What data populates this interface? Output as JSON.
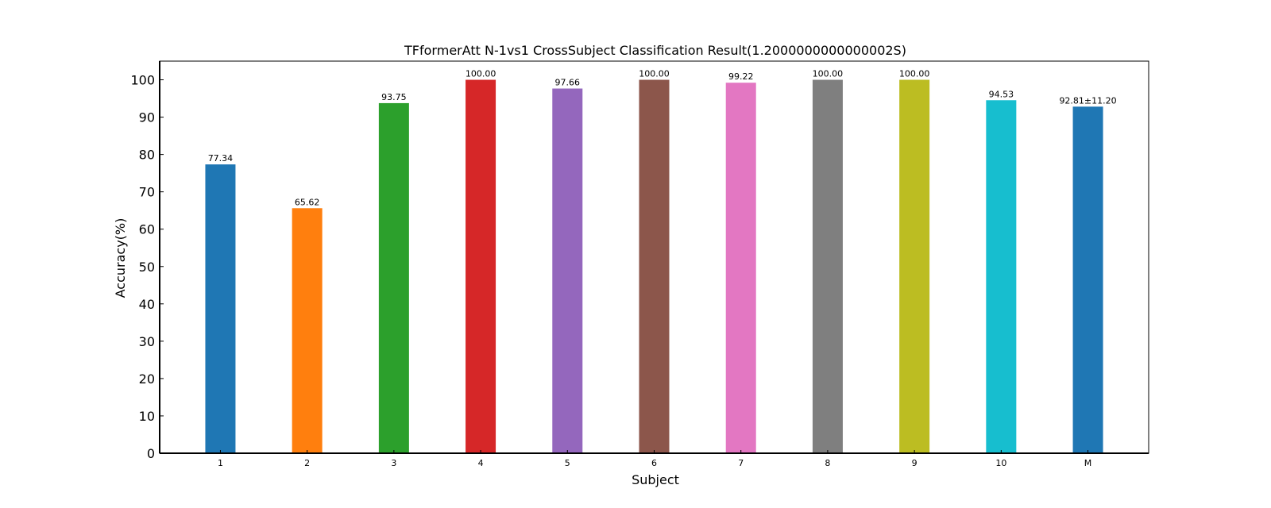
{
  "chart_data": {
    "type": "bar",
    "title": "TFformerAtt N-1vs1 CrossSubject Classification Result(1.2000000000000002S)",
    "xlabel": "Subject",
    "ylabel": "Accuracy(%)",
    "ylim": [
      0,
      105
    ],
    "yticks": [
      0,
      10,
      20,
      30,
      40,
      50,
      60,
      70,
      80,
      90,
      100
    ],
    "grid": false,
    "categories": [
      "1",
      "2",
      "3",
      "4",
      "5",
      "6",
      "7",
      "8",
      "9",
      "10",
      "M"
    ],
    "values": [
      77.34,
      65.62,
      93.75,
      100.0,
      97.66,
      100.0,
      99.22,
      100.0,
      100.0,
      94.53,
      92.81
    ],
    "value_labels": [
      "77.34",
      "65.62",
      "93.75",
      "100.00",
      "97.66",
      "100.00",
      "99.22",
      "100.00",
      "100.00",
      "94.53",
      "92.81±11.20"
    ],
    "colors": [
      "#1f77b4",
      "#ff7f0e",
      "#2ca02c",
      "#d62728",
      "#9467bd",
      "#8c564b",
      "#e377c2",
      "#7f7f7f",
      "#bcbd22",
      "#17becf",
      "#1f77b4"
    ],
    "label_colors": [
      "#000000",
      "#000000",
      "#000000",
      "#000000",
      "#000000",
      "#000000",
      "#000000",
      "#000000",
      "#000000",
      "#000000",
      "#ff0000"
    ]
  }
}
